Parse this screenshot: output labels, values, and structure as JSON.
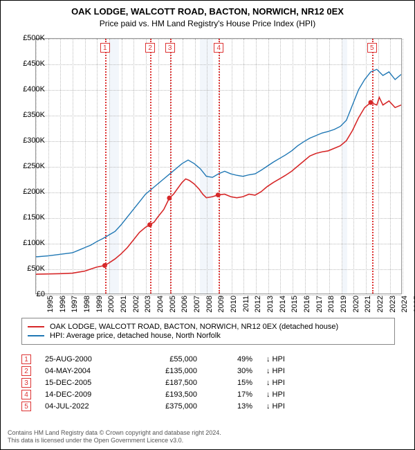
{
  "title": "OAK LODGE, WALCOTT ROAD, BACTON, NORWICH, NR12 0EX",
  "subtitle": "Price paid vs. HM Land Registry's House Price Index (HPI)",
  "chart": {
    "type": "line",
    "xlim": [
      1995,
      2025
    ],
    "ylim": [
      0,
      500000
    ],
    "ytick_step": 50000,
    "yticks": [
      "£0",
      "£50K",
      "£100K",
      "£150K",
      "£200K",
      "£250K",
      "£300K",
      "£350K",
      "£400K",
      "£450K",
      "£500K"
    ],
    "xticks": [
      1995,
      1996,
      1997,
      1998,
      1999,
      2000,
      2001,
      2002,
      2003,
      2004,
      2005,
      2006,
      2007,
      2008,
      2009,
      2010,
      2011,
      2012,
      2013,
      2014,
      2015,
      2016,
      2017,
      2018,
      2019,
      2020,
      2021,
      2022,
      2023,
      2024,
      2025
    ],
    "recession_bands": [
      [
        2001.0,
        2001.8
      ],
      [
        2008.4,
        2009.5
      ],
      [
        2020.1,
        2020.5
      ]
    ],
    "grid_color": "#bbbbbb",
    "band_color": "#e8eef7",
    "series": [
      {
        "name": "price",
        "color": "#d62728",
        "width": 1.6,
        "label": "OAK LODGE, WALCOTT ROAD, BACTON, NORWICH, NR12 0EX (detached house)",
        "points": [
          [
            1995,
            38000
          ],
          [
            1996,
            38500
          ],
          [
            1997,
            39000
          ],
          [
            1998,
            40000
          ],
          [
            1998.5,
            42000
          ],
          [
            1999,
            44000
          ],
          [
            1999.5,
            48000
          ],
          [
            2000,
            52000
          ],
          [
            2000.65,
            55000
          ],
          [
            2001,
            60000
          ],
          [
            2001.5,
            68000
          ],
          [
            2002,
            78000
          ],
          [
            2002.5,
            90000
          ],
          [
            2003,
            105000
          ],
          [
            2003.5,
            120000
          ],
          [
            2004,
            130000
          ],
          [
            2004.35,
            135000
          ],
          [
            2004.7,
            140000
          ],
          [
            2005,
            150000
          ],
          [
            2005.5,
            165000
          ],
          [
            2005.96,
            187500
          ],
          [
            2006.3,
            195000
          ],
          [
            2006.6,
            205000
          ],
          [
            2007,
            218000
          ],
          [
            2007.3,
            225000
          ],
          [
            2007.6,
            222000
          ],
          [
            2008,
            215000
          ],
          [
            2008.4,
            205000
          ],
          [
            2008.7,
            195000
          ],
          [
            2009,
            188000
          ],
          [
            2009.5,
            190000
          ],
          [
            2009.96,
            193500
          ],
          [
            2010.5,
            195000
          ],
          [
            2011,
            190000
          ],
          [
            2011.5,
            188000
          ],
          [
            2012,
            190000
          ],
          [
            2012.5,
            195000
          ],
          [
            2013,
            193000
          ],
          [
            2013.5,
            200000
          ],
          [
            2014,
            210000
          ],
          [
            2014.5,
            218000
          ],
          [
            2015,
            225000
          ],
          [
            2015.5,
            232000
          ],
          [
            2016,
            240000
          ],
          [
            2016.5,
            250000
          ],
          [
            2017,
            260000
          ],
          [
            2017.5,
            270000
          ],
          [
            2018,
            275000
          ],
          [
            2018.5,
            278000
          ],
          [
            2019,
            280000
          ],
          [
            2019.5,
            285000
          ],
          [
            2020,
            290000
          ],
          [
            2020.5,
            300000
          ],
          [
            2021,
            320000
          ],
          [
            2021.5,
            345000
          ],
          [
            2022,
            365000
          ],
          [
            2022.5,
            375000
          ],
          [
            2023,
            370000
          ],
          [
            2023.2,
            385000
          ],
          [
            2023.5,
            370000
          ],
          [
            2024,
            378000
          ],
          [
            2024.5,
            365000
          ],
          [
            2025,
            370000
          ]
        ],
        "sale_markers": [
          {
            "x": 2000.65,
            "y": 55000
          },
          {
            "x": 2004.35,
            "y": 135000
          },
          {
            "x": 2005.96,
            "y": 187500
          },
          {
            "x": 2009.96,
            "y": 193500
          },
          {
            "x": 2022.5,
            "y": 375000
          }
        ]
      },
      {
        "name": "hpi",
        "color": "#1f77b4",
        "width": 1.4,
        "label": "HPI: Average price, detached house, North Norfolk",
        "points": [
          [
            1995,
            72000
          ],
          [
            1996,
            74000
          ],
          [
            1997,
            77000
          ],
          [
            1998,
            80000
          ],
          [
            1998.5,
            85000
          ],
          [
            1999,
            90000
          ],
          [
            1999.5,
            95000
          ],
          [
            2000,
            102000
          ],
          [
            2000.5,
            108000
          ],
          [
            2001,
            115000
          ],
          [
            2001.5,
            122000
          ],
          [
            2002,
            135000
          ],
          [
            2002.5,
            150000
          ],
          [
            2003,
            165000
          ],
          [
            2003.5,
            180000
          ],
          [
            2004,
            195000
          ],
          [
            2004.5,
            205000
          ],
          [
            2005,
            215000
          ],
          [
            2005.5,
            225000
          ],
          [
            2006,
            235000
          ],
          [
            2006.5,
            245000
          ],
          [
            2007,
            255000
          ],
          [
            2007.5,
            262000
          ],
          [
            2008,
            255000
          ],
          [
            2008.5,
            245000
          ],
          [
            2009,
            230000
          ],
          [
            2009.5,
            228000
          ],
          [
            2010,
            235000
          ],
          [
            2010.5,
            240000
          ],
          [
            2011,
            235000
          ],
          [
            2011.5,
            232000
          ],
          [
            2012,
            230000
          ],
          [
            2012.5,
            233000
          ],
          [
            2013,
            235000
          ],
          [
            2013.5,
            242000
          ],
          [
            2014,
            250000
          ],
          [
            2014.5,
            258000
          ],
          [
            2015,
            265000
          ],
          [
            2015.5,
            272000
          ],
          [
            2016,
            280000
          ],
          [
            2016.5,
            290000
          ],
          [
            2017,
            298000
          ],
          [
            2017.5,
            305000
          ],
          [
            2018,
            310000
          ],
          [
            2018.5,
            315000
          ],
          [
            2019,
            318000
          ],
          [
            2019.5,
            322000
          ],
          [
            2020,
            328000
          ],
          [
            2020.5,
            340000
          ],
          [
            2021,
            370000
          ],
          [
            2021.5,
            400000
          ],
          [
            2022,
            420000
          ],
          [
            2022.5,
            435000
          ],
          [
            2023,
            440000
          ],
          [
            2023.5,
            428000
          ],
          [
            2024,
            435000
          ],
          [
            2024.5,
            420000
          ],
          [
            2025,
            430000
          ]
        ]
      }
    ],
    "markers": [
      {
        "n": "1",
        "x": 2000.65
      },
      {
        "n": "2",
        "x": 2004.35
      },
      {
        "n": "3",
        "x": 2005.96
      },
      {
        "n": "4",
        "x": 2009.96
      },
      {
        "n": "5",
        "x": 2022.5
      }
    ]
  },
  "legend": [
    "OAK LODGE, WALCOTT ROAD, BACTON, NORWICH, NR12 0EX (detached house)",
    "HPI: Average price, detached house, North Norfolk"
  ],
  "transactions": [
    {
      "n": "1",
      "date": "25-AUG-2000",
      "price": "£55,000",
      "diff": "49%",
      "dir": "↓ HPI"
    },
    {
      "n": "2",
      "date": "04-MAY-2004",
      "price": "£135,000",
      "diff": "30%",
      "dir": "↓ HPI"
    },
    {
      "n": "3",
      "date": "15-DEC-2005",
      "price": "£187,500",
      "diff": "15%",
      "dir": "↓ HPI"
    },
    {
      "n": "4",
      "date": "14-DEC-2009",
      "price": "£193,500",
      "diff": "17%",
      "dir": "↓ HPI"
    },
    {
      "n": "5",
      "date": "04-JUL-2022",
      "price": "£375,000",
      "diff": "13%",
      "dir": "↓ HPI"
    }
  ],
  "footer1": "Contains HM Land Registry data © Crown copyright and database right 2024.",
  "footer2": "This data is licensed under the Open Government Licence v3.0."
}
